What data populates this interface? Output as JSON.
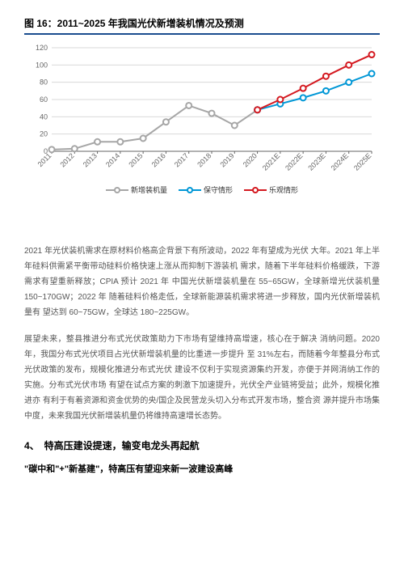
{
  "chart": {
    "title": "图 16：2011~2025 年我国光伏新增装机情况及预测",
    "type": "line",
    "categories": [
      "2011",
      "2012",
      "2013",
      "2014",
      "2015",
      "2016",
      "2017",
      "2018",
      "2019",
      "2020",
      "2021E",
      "2022E",
      "2023E",
      "2024E",
      "2025E"
    ],
    "series": [
      {
        "name": "新增装机量",
        "color": "#a6a6a6",
        "values": [
          2,
          3,
          11,
          11,
          15,
          34,
          53,
          44,
          30,
          48,
          null,
          null,
          null,
          null,
          null
        ]
      },
      {
        "name": "保守情形",
        "color": "#0097d6",
        "values": [
          null,
          null,
          null,
          null,
          null,
          null,
          null,
          null,
          null,
          48,
          55,
          62,
          70,
          80,
          90
        ]
      },
      {
        "name": "乐观情形",
        "color": "#d41920",
        "values": [
          null,
          null,
          null,
          null,
          null,
          null,
          null,
          null,
          null,
          48,
          60,
          73,
          87,
          100,
          112
        ]
      }
    ],
    "ylim": [
      0,
      120
    ],
    "ytick_step": 20,
    "background_color": "#ffffff",
    "grid_color": "#d9d9d9",
    "axis_color": "#666666",
    "title_fontsize": 12,
    "label_fontsize": 9,
    "line_width": 2,
    "marker_size": 3.5
  },
  "paragraphs": {
    "p1": "2021 年光伏装机需求在原材料价格高企背景下有所波动，2022 年有望成为光伏 大年。2021 年上半年硅料供需紧平衡带动硅料价格快速上涨从而抑制下游装机 需求，随着下半年硅料价格缓跌，下游需求有望重新释放；CPIA 预计 2021 年 中国光伏新增装机量在 55~65GW，全球新增光伏装机量 150~170GW；2022 年 随着硅料价格走低，全球新能源装机需求将进一步释放，国内光伏新增装机量有 望达到 60~75GW，全球达 180~225GW。",
    "p2": "展望未来，整县推进分布式光伏政策助力下市场有望维持高增速，核心在于解决 消纳问题。2020 年，我国分布式光伏项目占光伏新增装机量的比重进一步提升 至 31%左右，而随着今年整县分布式光伏政策的发布，规模化推进分布式光伏 建设不仅利于实现资源集约开发，亦便于并网消纳工作的实施。分布式光伏市场 有望在试点方案的刺激下加速提升，光伏全产业链将受益；此外，规模化推进亦 有利于有着资源和资金优势的央/国企及民营龙头切入分布式开发市场，整合资 源并提升市场集中度，未来我国光伏新增装机量仍将维持高速增长态势。"
  },
  "section": {
    "heading": "4、　特高压建设提速，输变电龙头再起航",
    "subheading": "\"碳中和\"+\"新基建\"，特高压有望迎来新一波建设高峰"
  }
}
